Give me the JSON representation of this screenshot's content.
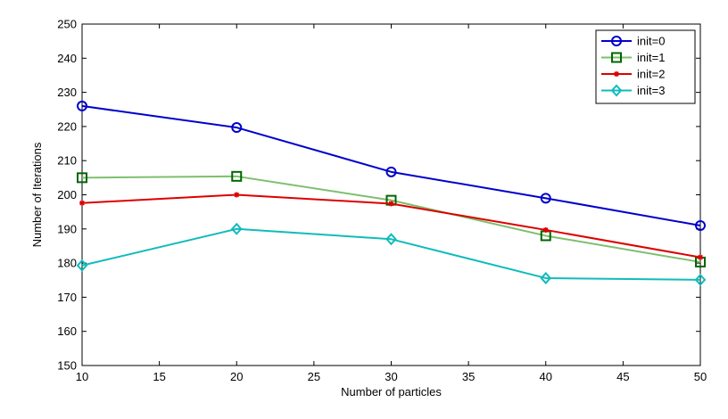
{
  "chart_data": {
    "type": "line",
    "title": "",
    "xlabel": "Number of particles",
    "ylabel": "Number of Iterations",
    "xlim": [
      10,
      50
    ],
    "ylim": [
      150,
      250
    ],
    "xticks": [
      10,
      15,
      20,
      25,
      30,
      35,
      40,
      45,
      50
    ],
    "yticks": [
      150,
      160,
      170,
      180,
      190,
      200,
      210,
      220,
      230,
      240,
      250
    ],
    "grid": false,
    "legend_position": "top-right",
    "x": [
      10,
      20,
      30,
      40,
      50
    ],
    "series": [
      {
        "name": "init=0",
        "values": [
          226,
          219.7,
          206.7,
          199,
          191
        ],
        "color": "#0000cc",
        "marker": "circle"
      },
      {
        "name": "init=1",
        "values": [
          205,
          205.4,
          198.4,
          188,
          180.3
        ],
        "color": "#7dbf6e",
        "marker_color": "#006600",
        "marker": "square"
      },
      {
        "name": "init=2",
        "values": [
          197.6,
          200,
          197.4,
          189.7,
          181.7
        ],
        "color": "#dd0000",
        "marker": "asterisk"
      },
      {
        "name": "init=3",
        "values": [
          179.3,
          190,
          187,
          175.6,
          175.1
        ],
        "color": "#11bbbb",
        "marker": "diamond"
      }
    ]
  }
}
